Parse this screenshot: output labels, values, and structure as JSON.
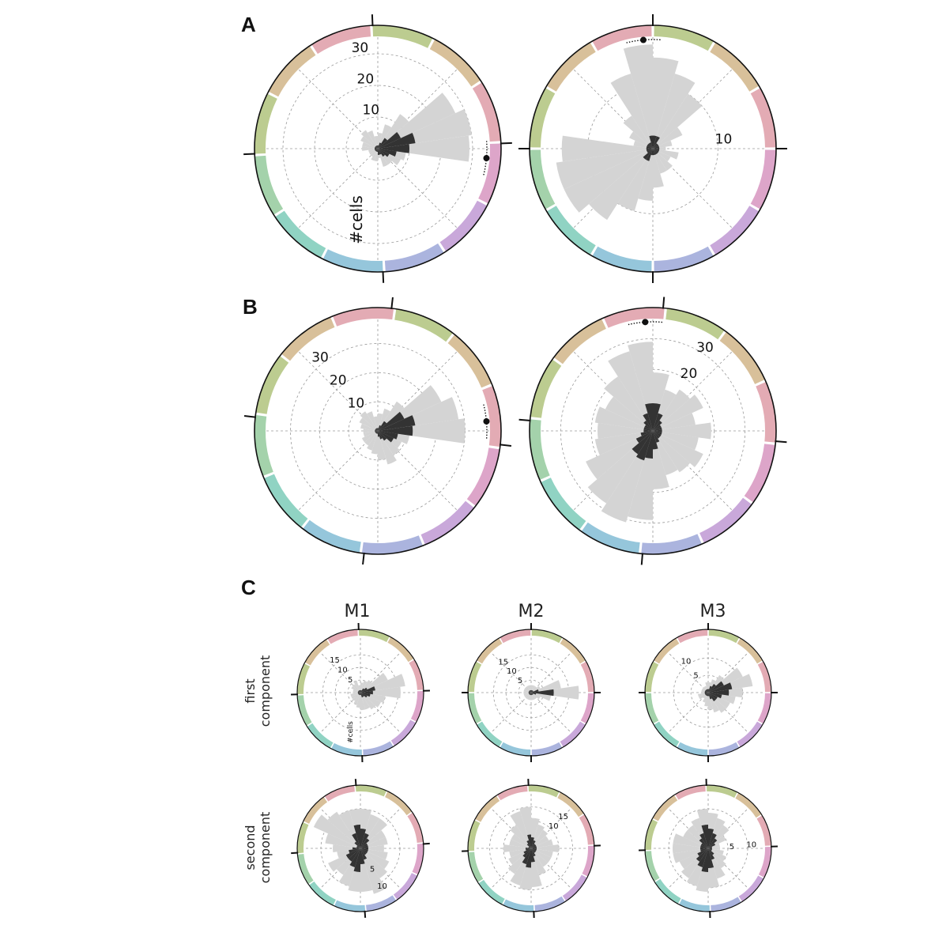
{
  "panels": [
    {
      "letter": "A"
    },
    {
      "letter": "B"
    },
    {
      "letter": "C"
    }
  ],
  "column_titles": [
    "M1",
    "M2",
    "M3"
  ],
  "row_labels": [
    [
      "first",
      "component"
    ],
    [
      "second",
      "component"
    ]
  ],
  "colors": {
    "light_bars": "#d4d4d4",
    "dark_bars": "#333333",
    "grid": "#9a9a9a",
    "ring_gradient": [
      "#b8c98a",
      "#d6bd95",
      "#e2a7b0",
      "#dba0c6",
      "#c6a3d8",
      "#a7b0dc",
      "#8fc3d9",
      "#8ad1c0",
      "#9fd0a6"
    ]
  },
  "chart_data": [
    {
      "id": "A-left",
      "type": "polar-histogram",
      "ylabel": "#cells",
      "rlim": [
        0,
        35
      ],
      "rticks": [
        10,
        20,
        30
      ],
      "rtick_labels": [
        "10",
        "20",
        "30"
      ],
      "light": [
        29,
        30,
        27,
        13,
        8,
        5,
        4,
        6,
        7,
        6,
        5,
        5,
        3,
        3,
        3,
        4,
        4,
        3,
        6,
        6,
        8,
        9
      ],
      "dark": [
        10,
        12,
        8,
        4,
        2,
        1,
        1,
        1,
        1,
        1,
        1,
        1,
        1,
        1,
        1,
        1,
        1,
        2,
        2,
        3,
        4,
        6
      ],
      "mean_dot": {
        "direction_deg": 355
      }
    },
    {
      "id": "A-right",
      "type": "polar-histogram",
      "ylabel": "",
      "rlim": [
        0,
        17
      ],
      "rticks": [
        10
      ],
      "rtick_labels": [
        "10"
      ],
      "light": [
        2,
        3,
        5,
        10,
        12,
        14,
        16,
        12,
        6,
        4,
        3,
        14,
        15,
        15,
        13,
        10,
        8,
        6,
        4,
        4,
        3,
        4
      ],
      "dark": [
        1,
        1,
        1,
        1,
        2,
        2,
        2,
        1,
        1,
        1,
        1,
        1,
        1,
        1,
        2,
        2,
        1,
        1,
        1,
        1,
        1,
        1
      ],
      "mean_dot": {
        "direction_deg": 95
      }
    },
    {
      "id": "B-left",
      "type": "polar-histogram",
      "ylabel": "",
      "rlim": [
        0,
        38
      ],
      "rticks": [
        10,
        20,
        30
      ],
      "rtick_labels": [
        "10",
        "20",
        "30"
      ],
      "light": [
        30,
        28,
        24,
        12,
        8,
        6,
        5,
        7,
        8,
        7,
        6,
        5,
        5,
        6,
        6,
        7,
        8,
        10,
        12,
        10,
        9,
        11
      ],
      "dark": [
        12,
        13,
        10,
        4,
        2,
        1,
        1,
        1,
        1,
        1,
        1,
        1,
        1,
        1,
        1,
        1,
        1,
        2,
        3,
        4,
        6,
        7
      ],
      "mean_dot": {
        "direction_deg": 5
      }
    },
    {
      "id": "B-right",
      "type": "polar-histogram",
      "ylabel": "",
      "rlim": [
        0,
        36
      ],
      "rticks": [
        20,
        30
      ],
      "rtick_labels": [
        "20",
        "30"
      ],
      "light": [
        19,
        14,
        18,
        16,
        14,
        19,
        29,
        27,
        21,
        17,
        19,
        18,
        19,
        24,
        28,
        31,
        29,
        19,
        15,
        16,
        18,
        15
      ],
      "dark": [
        3,
        3,
        3,
        4,
        6,
        9,
        9,
        6,
        4,
        3,
        3,
        3,
        4,
        6,
        9,
        10,
        9,
        6,
        4,
        3,
        3,
        3
      ],
      "mean_dot": {
        "direction_deg": 94
      }
    },
    {
      "id": "C-M1-first",
      "type": "polar-histogram",
      "ylabel": "#cells",
      "rlim": [
        0,
        22
      ],
      "rticks": [
        5,
        10,
        15
      ],
      "rtick_labels": [
        "5",
        "10",
        "15"
      ],
      "light": [
        16,
        18,
        12,
        6,
        5,
        4,
        3,
        5,
        4,
        4,
        3,
        3,
        4,
        4,
        4,
        5,
        6,
        7,
        7,
        8,
        9,
        10
      ],
      "dark": [
        5,
        6,
        3,
        2,
        1,
        1,
        1,
        1,
        1,
        1,
        1,
        1,
        1,
        1,
        1,
        1,
        1,
        1,
        2,
        2,
        3,
        4
      ],
      "mean_dot": null
    },
    {
      "id": "C-M2-first",
      "type": "polar-histogram",
      "ylabel": "",
      "rlim": [
        0,
        22
      ],
      "rticks": [
        5,
        10,
        15
      ],
      "rtick_labels": [
        "5",
        "10",
        "15"
      ],
      "light": [
        19,
        12,
        4,
        3,
        3,
        3,
        3,
        3,
        3,
        3,
        3,
        3,
        3,
        3,
        3,
        3,
        3,
        3,
        3,
        3,
        4,
        8
      ],
      "dark": [
        9,
        3,
        1,
        1,
        1,
        1,
        1,
        1,
        1,
        1,
        1,
        1,
        1,
        1,
        1,
        1,
        1,
        1,
        1,
        1,
        1,
        2
      ],
      "mean_dot": null
    },
    {
      "id": "C-M3-first",
      "type": "polar-histogram",
      "ylabel": "",
      "rlim": [
        0,
        16
      ],
      "rticks": [
        5,
        10
      ],
      "rtick_labels": [
        "5",
        "10"
      ],
      "light": [
        10,
        13,
        11,
        6,
        4,
        3,
        3,
        2,
        2,
        2,
        2,
        2,
        3,
        3,
        2,
        3,
        4,
        5,
        6,
        7,
        7,
        8
      ],
      "dark": [
        6,
        7,
        5,
        3,
        2,
        1,
        1,
        1,
        1,
        1,
        1,
        1,
        1,
        1,
        1,
        1,
        1,
        1,
        2,
        3,
        3,
        4
      ],
      "mean_dot": null
    },
    {
      "id": "C-M1-second",
      "type": "polar-histogram",
      "ylabel": "",
      "rlim": [
        0,
        14
      ],
      "rticks": [
        5,
        10
      ],
      "rtick_labels": [
        "5",
        "10"
      ],
      "light": [
        6,
        7,
        7,
        9,
        9,
        10,
        10,
        10,
        11,
        13,
        9,
        7,
        6,
        9,
        8,
        10,
        11,
        11,
        12,
        9,
        8,
        7
      ],
      "dark": [
        2,
        2,
        2,
        3,
        4,
        5,
        6,
        4,
        2,
        1,
        1,
        2,
        3,
        4,
        4,
        5,
        6,
        4,
        3,
        2,
        2,
        2
      ],
      "mean_dot": null
    },
    {
      "id": "C-M2-second",
      "type": "polar-histogram",
      "ylabel": "",
      "rlim": [
        0,
        20
      ],
      "rticks": [
        10,
        15
      ],
      "rtick_labels": [
        "10",
        "15"
      ],
      "light": [
        10,
        8,
        7,
        8,
        9,
        11,
        15,
        14,
        10,
        8,
        8,
        10,
        8,
        9,
        11,
        14,
        15,
        14,
        10,
        8,
        8,
        8
      ],
      "dark": [
        2,
        2,
        2,
        2,
        3,
        4,
        5,
        3,
        2,
        1,
        1,
        2,
        2,
        3,
        4,
        6,
        7,
        5,
        3,
        2,
        2,
        2
      ],
      "mean_dot": null
    },
    {
      "id": "C-M3-second",
      "type": "polar-histogram",
      "ylabel": "",
      "rlim": [
        0,
        14
      ],
      "rticks": [
        5,
        10
      ],
      "rtick_labels": [
        "5",
        "10"
      ],
      "light": [
        3,
        3,
        5,
        7,
        8,
        9,
        10,
        8,
        7,
        7,
        9,
        9,
        9,
        8,
        9,
        10,
        11,
        10,
        8,
        6,
        5,
        4
      ],
      "dark": [
        1,
        1,
        2,
        3,
        4,
        5,
        6,
        4,
        3,
        2,
        2,
        2,
        2,
        3,
        4,
        5,
        6,
        5,
        3,
        2,
        1,
        1
      ],
      "mean_dot": null
    }
  ]
}
